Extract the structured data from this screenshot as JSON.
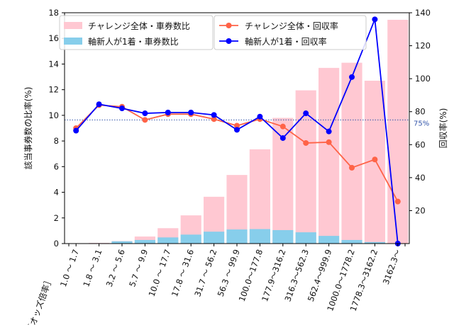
{
  "chart_data": {
    "type": "bar+line",
    "xlabel": "［オッズ倍率］",
    "ylabel_left": "該当事券数の比率(%)",
    "ylabel_right": "回収率(%)",
    "ylim_left": [
      0,
      18
    ],
    "ylim_right": [
      0,
      140
    ],
    "yticks_left": [
      0,
      2,
      4,
      6,
      8,
      10,
      12,
      14,
      16,
      18
    ],
    "yticks_right": [
      20,
      40,
      60,
      80,
      100,
      120,
      140
    ],
    "categories": [
      "1.0 ～ 1.7",
      "1.8 ～ 3.1",
      "3.2 ～ 5.6",
      "5.7 ～ 9.9",
      "10.0 ～ 17.7",
      "17.8 ～ 31.6",
      "31.7 ～ 56.2",
      "56.3 ～ 99.9",
      "100.0～177.8",
      "177.9～316.2",
      "316.3～562.3",
      "562.4～999.9",
      "1000.0～1778.2",
      "1778.3～3162.2",
      "3162.3～"
    ],
    "bar_series": [
      {
        "name": "チャレンジ全体・車券数比",
        "color": "#ffc8d2",
        "values": [
          0.02,
          0.05,
          0.2,
          0.55,
          1.2,
          2.2,
          3.65,
          5.35,
          7.35,
          9.8,
          11.95,
          13.7,
          14.1,
          12.7,
          17.45
        ]
      },
      {
        "name": "軸新人が1着・車券数比",
        "color": "#87ceeb",
        "values": [
          0.01,
          0.03,
          0.18,
          0.28,
          0.48,
          0.7,
          0.93,
          1.1,
          1.13,
          1.05,
          0.88,
          0.6,
          0.28,
          0.12,
          0.0
        ]
      }
    ],
    "line_series": [
      {
        "name": "チャレンジ全体・回収率",
        "color": "#ff6347",
        "values": [
          70,
          84,
          83,
          75,
          78.5,
          78.5,
          75.5,
          71.5,
          75.5,
          71,
          61,
          61.5,
          46,
          51,
          25.5
        ]
      },
      {
        "name": "軸新人が1着・回収率",
        "color": "#0000ff",
        "values": [
          68.5,
          84.5,
          82,
          79,
          79.5,
          79.5,
          78,
          69,
          77,
          64,
          79,
          68,
          101,
          136,
          0
        ]
      }
    ],
    "reference_line": {
      "value": 75,
      "label": "75%",
      "color": "#3355aa"
    },
    "legend_placement": "top-left"
  }
}
